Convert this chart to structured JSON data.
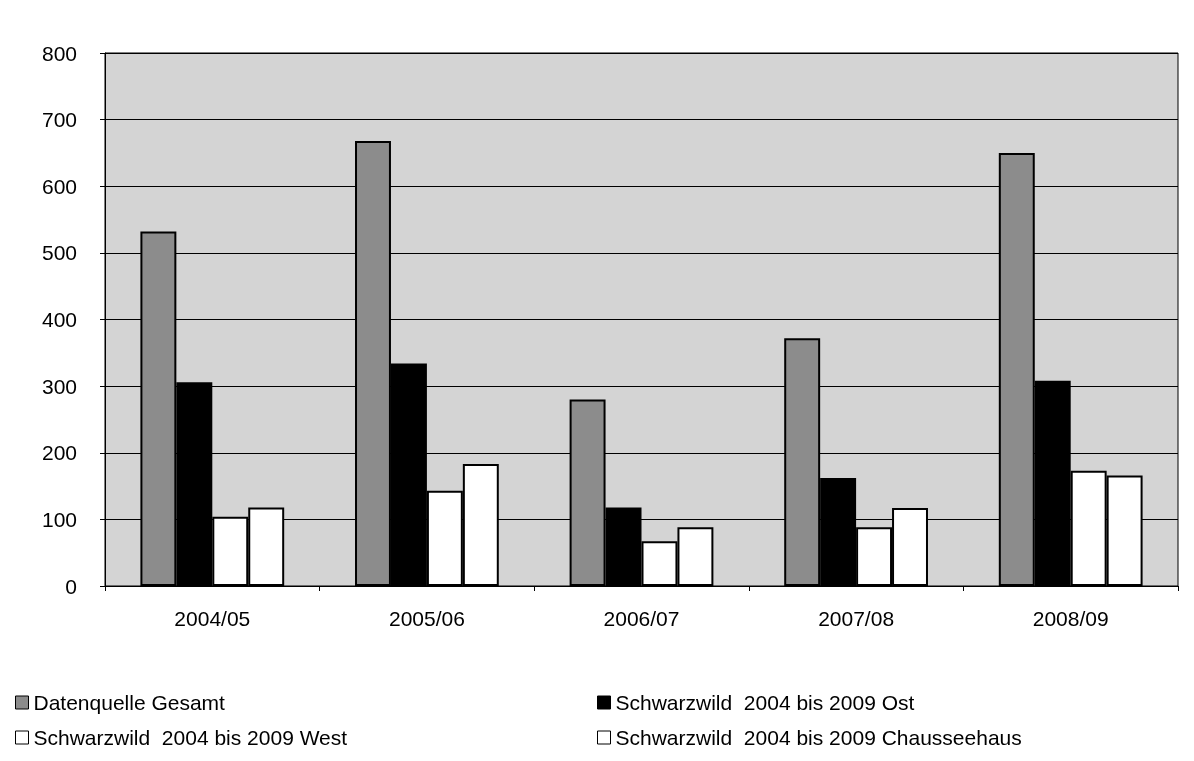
{
  "chart_data": {
    "type": "bar",
    "categories": [
      "2004/05",
      "2005/06",
      "2006/07",
      "2007/08",
      "2008/09"
    ],
    "series": [
      {
        "name": "Datenquelle Gesamt",
        "color": "#8c8c8c",
        "values": [
          532,
          668,
          280,
          372,
          650
        ]
      },
      {
        "name": "Schwarzwild  2004 bis 2009 Ost",
        "color": "#000000",
        "values": [
          306,
          334,
          118,
          162,
          308
        ]
      },
      {
        "name": "Schwarzwild  2004 bis 2009 West",
        "color": "#ffffff",
        "values": [
          104,
          143,
          67,
          88,
          173
        ]
      },
      {
        "name": "Schwarzwild  2004 bis 2009 Chausseehaus",
        "color": "#ffffff",
        "values": [
          118,
          183,
          88,
          117,
          166
        ]
      }
    ],
    "ylim": [
      0,
      800
    ],
    "yticks": [
      0,
      100,
      200,
      300,
      400,
      500,
      600,
      700,
      800
    ],
    "grid": "y",
    "legend": "bottom"
  }
}
